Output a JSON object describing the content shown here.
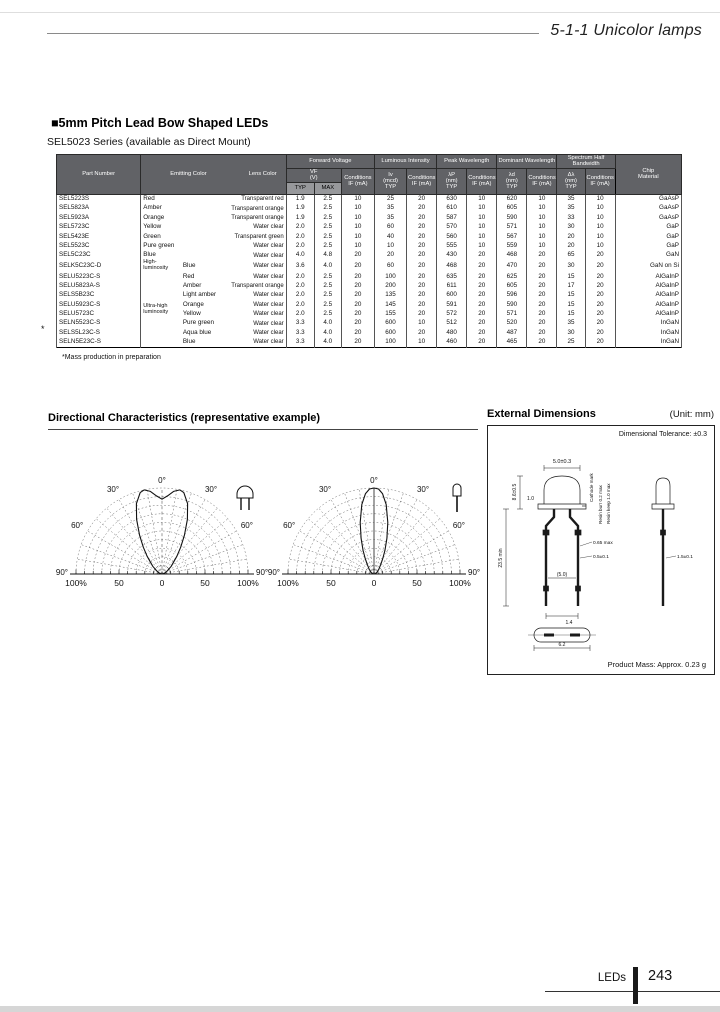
{
  "page": {
    "chapter": "5-1-1 Unicolor lamps",
    "section_title": "■5mm Pitch Lead Bow Shaped LEDs",
    "series_subtitle": "SEL5023 Series (available as Direct Mount)",
    "margin_mark": "*",
    "footnote": "*Mass production in preparation"
  },
  "colors": {
    "header_bg": "#616266",
    "header_sub_bg": "#97989b",
    "text": "#111111",
    "border": "#000000",
    "page_bg": "#ffffff",
    "scan_edge": "#d6d6d6"
  },
  "table": {
    "header": {
      "part_number": "Part Number",
      "emitting_color": "Emitting Color",
      "lens_color": "Lens Color",
      "forward_voltage": "Forward Voltage",
      "luminous_intensity": "Luminous Intensity",
      "peak_wavelength": "Peak Wavelength",
      "dominant_wavelength": "Dominant Wavelength",
      "spectrum_half_bandwidth": "Spectrum Half Bandwidth",
      "vf": "VF\n(V)",
      "typ": "TYP",
      "max": "MAX",
      "conditions": "Conditions\nIF (mA)",
      "iv": "Iv\n(mcd)\nTYP",
      "lp": "λP\n(nm)\nTYP",
      "ld": "λd\n(nm)\nTYP",
      "dl": "Δλ\n(nm)\nTYP",
      "chip_material": "Chip\nMaterial"
    },
    "group_labels": {
      "high_luminosity": "High-luminosity",
      "ultra_high_luminosity": "Ultra-high\nluminosity"
    },
    "rows": [
      {
        "part": "SEL5223S",
        "group": "",
        "color": "Red",
        "lens": "Transparent red",
        "vf_typ": "1.9",
        "vf_max": "2.5",
        "vf_cond": "10",
        "iv": "25",
        "iv_cond": "20",
        "lp": "630",
        "lp_cond": "10",
        "ld": "620",
        "ld_cond": "10",
        "dl": "35",
        "dl_cond": "10",
        "chip": "GaAsP"
      },
      {
        "part": "SEL5823A",
        "group": "",
        "color": "Amber",
        "lens": "Transparent orange",
        "vf_typ": "1.9",
        "vf_max": "2.5",
        "vf_cond": "10",
        "iv": "35",
        "iv_cond": "20",
        "lp": "610",
        "lp_cond": "10",
        "ld": "605",
        "ld_cond": "10",
        "dl": "35",
        "dl_cond": "10",
        "chip": "GaAsP"
      },
      {
        "part": "SEL5923A",
        "group": "",
        "color": "Orange",
        "lens": "Transparent orange",
        "vf_typ": "1.9",
        "vf_max": "2.5",
        "vf_cond": "10",
        "iv": "35",
        "iv_cond": "20",
        "lp": "587",
        "lp_cond": "10",
        "ld": "590",
        "ld_cond": "10",
        "dl": "33",
        "dl_cond": "10",
        "chip": "GaAsP"
      },
      {
        "part": "SEL5723C",
        "group": "",
        "color": "Yellow",
        "lens": "Water clear",
        "vf_typ": "2.0",
        "vf_max": "2.5",
        "vf_cond": "10",
        "iv": "60",
        "iv_cond": "20",
        "lp": "570",
        "lp_cond": "10",
        "ld": "571",
        "ld_cond": "10",
        "dl": "30",
        "dl_cond": "10",
        "chip": "GaP"
      },
      {
        "part": "SEL5423E",
        "group": "",
        "color": "Green",
        "lens": "Transparent green",
        "vf_typ": "2.0",
        "vf_max": "2.5",
        "vf_cond": "10",
        "iv": "40",
        "iv_cond": "20",
        "lp": "560",
        "lp_cond": "10",
        "ld": "567",
        "ld_cond": "10",
        "dl": "20",
        "dl_cond": "10",
        "chip": "GaP"
      },
      {
        "part": "SEL5523C",
        "group": "",
        "color": "Pure green",
        "lens": "Water clear",
        "vf_typ": "2.0",
        "vf_max": "2.5",
        "vf_cond": "10",
        "iv": "10",
        "iv_cond": "20",
        "lp": "555",
        "lp_cond": "10",
        "ld": "559",
        "ld_cond": "10",
        "dl": "20",
        "dl_cond": "10",
        "chip": "GaP"
      },
      {
        "part": "SEL5C23C",
        "group": "",
        "color": "Blue",
        "lens": "Water clear",
        "vf_typ": "4.0",
        "vf_max": "4.8",
        "vf_cond": "20",
        "iv": "20",
        "iv_cond": "20",
        "lp": "430",
        "lp_cond": "20",
        "ld": "468",
        "ld_cond": "20",
        "dl": "65",
        "dl_cond": "20",
        "chip": "GaN"
      },
      {
        "part": "SELK5C23C-D",
        "group": "High-luminosity",
        "color": "Blue",
        "lens": "Water clear",
        "vf_typ": "3.6",
        "vf_max": "4.0",
        "vf_cond": "20",
        "iv": "60",
        "iv_cond": "20",
        "lp": "468",
        "lp_cond": "20",
        "ld": "470",
        "ld_cond": "20",
        "dl": "30",
        "dl_cond": "20",
        "chip": "GaN on Si"
      },
      {
        "part": "SELU5223C-S",
        "group": "Ultra-high\nluminosity",
        "color": "Red",
        "lens": "Water clear",
        "vf_typ": "2.0",
        "vf_max": "2.5",
        "vf_cond": "20",
        "iv": "100",
        "iv_cond": "20",
        "lp": "635",
        "lp_cond": "20",
        "ld": "625",
        "ld_cond": "20",
        "dl": "15",
        "dl_cond": "20",
        "chip": "AlGaInP"
      },
      {
        "part": "SELU5823A-S",
        "group": "",
        "color": "Amber",
        "lens": "Transparent orange",
        "vf_typ": "2.0",
        "vf_max": "2.5",
        "vf_cond": "20",
        "iv": "200",
        "iv_cond": "20",
        "lp": "611",
        "lp_cond": "20",
        "ld": "605",
        "ld_cond": "20",
        "dl": "17",
        "dl_cond": "20",
        "chip": "AlGaInP"
      },
      {
        "part": "SELS5B23C",
        "group": "",
        "color": "Light amber",
        "lens": "Water clear",
        "vf_typ": "2.0",
        "vf_max": "2.5",
        "vf_cond": "20",
        "iv": "135",
        "iv_cond": "20",
        "lp": "600",
        "lp_cond": "20",
        "ld": "596",
        "ld_cond": "20",
        "dl": "15",
        "dl_cond": "20",
        "chip": "AlGaInP"
      },
      {
        "part": "SELU5923C-S",
        "group": "",
        "color": "Orange",
        "lens": "Water clear",
        "vf_typ": "2.0",
        "vf_max": "2.5",
        "vf_cond": "20",
        "iv": "145",
        "iv_cond": "20",
        "lp": "591",
        "lp_cond": "20",
        "ld": "590",
        "ld_cond": "20",
        "dl": "15",
        "dl_cond": "20",
        "chip": "AlGaInP"
      },
      {
        "part": "SELU5723C",
        "group": "",
        "color": "Yellow",
        "lens": "Water clear",
        "vf_typ": "2.0",
        "vf_max": "2.5",
        "vf_cond": "20",
        "iv": "155",
        "iv_cond": "20",
        "lp": "572",
        "lp_cond": "20",
        "ld": "571",
        "ld_cond": "20",
        "dl": "15",
        "dl_cond": "20",
        "chip": "AlGaInP"
      },
      {
        "part": "SELN5523C-S",
        "group": "",
        "color": "Pure green",
        "lens": "Water clear",
        "vf_typ": "3.3",
        "vf_max": "4.0",
        "vf_cond": "20",
        "iv": "600",
        "iv_cond": "10",
        "lp": "512",
        "lp_cond": "20",
        "ld": "520",
        "ld_cond": "20",
        "dl": "35",
        "dl_cond": "20",
        "chip": "InGaN"
      },
      {
        "part": "SELS5L23C-S",
        "group": "",
        "color": "Aqua blue",
        "lens": "Water clear",
        "vf_typ": "3.3",
        "vf_max": "4.0",
        "vf_cond": "20",
        "iv": "600",
        "iv_cond": "20",
        "lp": "480",
        "lp_cond": "20",
        "ld": "487",
        "ld_cond": "20",
        "dl": "30",
        "dl_cond": "20",
        "chip": "InGaN"
      },
      {
        "part": "SELN5E23C-S",
        "group": "",
        "color": "Blue",
        "lens": "Water clear",
        "vf_typ": "3.3",
        "vf_max": "4.0",
        "vf_cond": "20",
        "iv": "100",
        "iv_cond": "10",
        "lp": "460",
        "lp_cond": "20",
        "ld": "465",
        "ld_cond": "20",
        "dl": "25",
        "dl_cond": "20",
        "chip": "InGaN"
      }
    ]
  },
  "directional": {
    "title": "Directional Characteristics (representative example)"
  },
  "chart_data": [
    {
      "type": "polar",
      "name": "radiation-pattern-front-view",
      "title": "Directional Characteristics (representative example)",
      "angle_tick_labels": [
        "0°",
        "30°",
        "60°",
        "90°"
      ],
      "radius_axis_labels": [
        "100%",
        "50",
        "0",
        "50",
        "100%"
      ],
      "grid": {
        "arc_step_percent": 10,
        "radial_step_deg": 10,
        "style": "dashed"
      },
      "zero_axis": "dashed",
      "icon": "front-view-led-icon",
      "series": [
        {
          "name": "relative luminous intensity",
          "points_deg_percent": [
            [
              -90,
              1
            ],
            [
              -70,
              4
            ],
            [
              -60,
              7
            ],
            [
              -50,
              14
            ],
            [
              -40,
              27
            ],
            [
              -35,
              38
            ],
            [
              -30,
              52
            ],
            [
              -25,
              70
            ],
            [
              -20,
              87
            ],
            [
              -15,
              98
            ],
            [
              -12,
              100
            ],
            [
              -8,
              97
            ],
            [
              -4,
              91
            ],
            [
              0,
              87
            ],
            [
              4,
              91
            ],
            [
              8,
              97
            ],
            [
              12,
              100
            ],
            [
              15,
              98
            ],
            [
              20,
              87
            ],
            [
              25,
              70
            ],
            [
              30,
              52
            ],
            [
              35,
              38
            ],
            [
              40,
              27
            ],
            [
              50,
              14
            ],
            [
              60,
              7
            ],
            [
              70,
              4
            ],
            [
              90,
              1
            ]
          ]
        }
      ]
    },
    {
      "type": "polar",
      "name": "radiation-pattern-side-view",
      "title": "Directional Characteristics (representative example)",
      "angle_tick_labels": [
        "0°",
        "30°",
        "60°",
        "90°"
      ],
      "radius_axis_labels": [
        "100%",
        "50",
        "0",
        "50",
        "100%"
      ],
      "grid": {
        "arc_step_percent": 10,
        "radial_step_deg": 10,
        "style": "dashed"
      },
      "zero_axis": "solid",
      "icon": "side-view-led-icon",
      "series": [
        {
          "name": "relative luminous intensity",
          "points_deg_percent": [
            [
              -90,
              1
            ],
            [
              -60,
              4
            ],
            [
              -45,
              8
            ],
            [
              -35,
              14
            ],
            [
              -30,
              20
            ],
            [
              -25,
              30
            ],
            [
              -20,
              44
            ],
            [
              -15,
              62
            ],
            [
              -10,
              82
            ],
            [
              -6,
              94
            ],
            [
              -3,
              99
            ],
            [
              0,
              100
            ],
            [
              3,
              99
            ],
            [
              6,
              94
            ],
            [
              10,
              82
            ],
            [
              15,
              62
            ],
            [
              20,
              44
            ],
            [
              25,
              30
            ],
            [
              30,
              20
            ],
            [
              35,
              14
            ],
            [
              45,
              8
            ],
            [
              60,
              4
            ],
            [
              90,
              1
            ]
          ]
        }
      ]
    }
  ],
  "external_dimensions": {
    "title": "External Dimensions",
    "unit": "(Unit: mm)",
    "tolerance_note": "Dimensional Tolerance: ±0.3",
    "product_mass": "Product Mass: Approx. 0.23 g",
    "labels": {
      "lens_diameter": "5.0±0.3",
      "flange_thickness": "1.0",
      "body_height": "8.6±0.5",
      "lead_length": "23.5 min",
      "lead_spacing": "(5.0)",
      "lead_width": "0.65 max",
      "lead_thickness": "0.5±0.1",
      "tip_pitch": "1.4",
      "base_length": "6.2",
      "side_width": "1.5±0.1",
      "cathode_mark": "Cathode mark",
      "resin_burr": "Resin burr 0.2 max",
      "resin_keep": "Resin keep 1.0 max"
    }
  },
  "footer": {
    "label": "LEDs",
    "page_number": "243"
  }
}
